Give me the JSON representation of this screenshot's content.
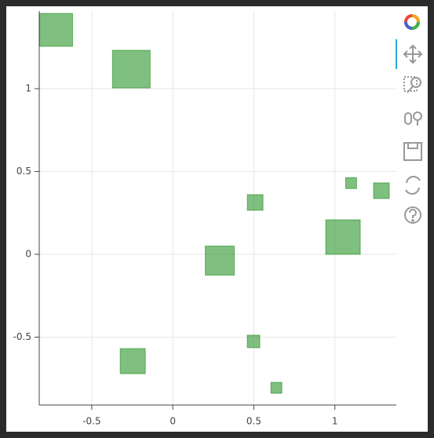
{
  "chart_data": {
    "type": "scatter",
    "marker": "square",
    "color": "#008000",
    "x": [
      -0.72,
      -0.256,
      1.1,
      1.287,
      0.508,
      1.05,
      0.29,
      0.498,
      -0.247,
      0.639
    ],
    "y": [
      1.355,
      1.118,
      0.43,
      0.384,
      0.313,
      0.104,
      -0.038,
      -0.526,
      -0.645,
      -0.806
    ],
    "sizes": [
      42,
      48,
      14,
      20,
      20,
      44,
      37,
      16,
      32,
      14
    ],
    "xlim": [
      -0.824,
      1.379
    ],
    "ylim": [
      -0.91,
      1.469
    ],
    "xticks": [
      -0.5,
      0,
      0.5,
      1
    ],
    "yticks": [
      -0.5,
      0,
      0.5,
      1
    ],
    "grid": true
  }
}
